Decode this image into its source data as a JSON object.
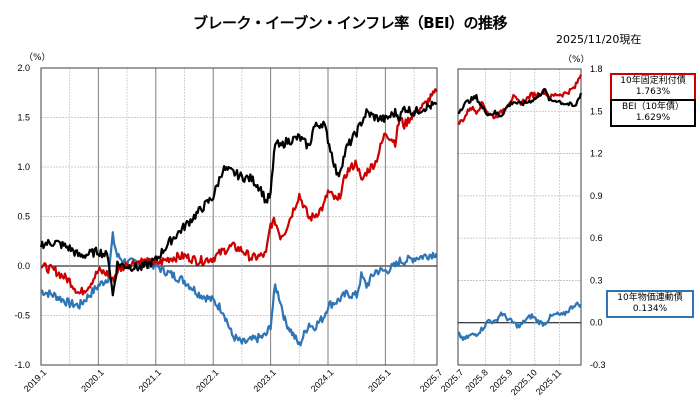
{
  "title": "ブレーク・イーブン・インフレ率（BEI）の推移",
  "as_of": "2025/11/20現在",
  "unit_left": "（%）",
  "unit_right": "（%）",
  "legend": [
    {
      "name": "10年固定利付債",
      "value": "1.763%",
      "color": "#cc0000"
    },
    {
      "name": "BEI（10年債）",
      "value": "1.629%",
      "color": "#000000"
    },
    {
      "name": "10年物価連動債",
      "value": "0.134%",
      "color": "#2e75b6"
    }
  ],
  "chart_data": [
    {
      "type": "line",
      "title": "ブレーク・イーブン・インフレ率（BEI）の推移",
      "xlabel": "",
      "ylabel": "（%）",
      "ylim": [
        -1.0,
        2.0
      ],
      "yticks": [
        "2.0",
        "1.5",
        "1.0",
        "0.5",
        "0.0",
        "-0.5",
        "-1.0"
      ],
      "xticks": [
        "2019.1",
        "2020.1",
        "2021.1",
        "2022.1",
        "2023.1",
        "2024.1",
        "2025.1",
        "2025.7"
      ],
      "grid": true,
      "x": [
        2019.0,
        2019.25,
        2019.5,
        2019.67,
        2019.83,
        2020.0,
        2020.17,
        2020.25,
        2020.33,
        2020.5,
        2020.75,
        2021.0,
        2021.25,
        2021.5,
        2021.75,
        2022.0,
        2022.17,
        2022.33,
        2022.5,
        2022.67,
        2022.83,
        2022.92,
        2023.0,
        2023.08,
        2023.17,
        2023.25,
        2023.5,
        2023.67,
        2023.75,
        2023.92,
        2024.0,
        2024.17,
        2024.33,
        2024.5,
        2024.58,
        2024.67,
        2024.83,
        2025.0,
        2025.17,
        2025.25,
        2025.33,
        2025.5,
        2025.67,
        2025.89
      ],
      "series": [
        {
          "name": "BEI（10年債）",
          "color": "#000000",
          "values": [
            0.22,
            0.24,
            0.18,
            0.1,
            0.12,
            0.15,
            0.1,
            -0.3,
            0.02,
            0.0,
            -0.02,
            0.06,
            0.25,
            0.4,
            0.55,
            0.7,
            0.98,
            0.95,
            0.9,
            0.88,
            0.78,
            0.65,
            0.72,
            1.25,
            1.2,
            1.25,
            1.3,
            1.2,
            1.4,
            1.45,
            1.28,
            0.9,
            1.2,
            1.35,
            1.45,
            1.55,
            1.5,
            1.48,
            1.55,
            1.5,
            1.6,
            1.55,
            1.6,
            1.63
          ]
        },
        {
          "name": "10年固定利付債",
          "color": "#cc0000",
          "values": [
            0.0,
            -0.05,
            -0.15,
            -0.28,
            -0.2,
            -0.05,
            -0.08,
            -0.15,
            -0.05,
            0.02,
            0.05,
            0.02,
            0.08,
            0.1,
            0.05,
            0.08,
            0.15,
            0.2,
            0.16,
            0.08,
            0.1,
            0.12,
            0.42,
            0.45,
            0.3,
            0.35,
            0.72,
            0.48,
            0.5,
            0.6,
            0.75,
            0.65,
            0.95,
            1.05,
            0.85,
            0.95,
            1.05,
            1.35,
            1.25,
            1.5,
            1.42,
            1.55,
            1.62,
            1.76
          ]
        },
        {
          "name": "10年物価連動債",
          "color": "#2e75b6",
          "values": [
            -0.25,
            -0.3,
            -0.38,
            -0.4,
            -0.3,
            -0.2,
            -0.12,
            0.3,
            0.1,
            0.03,
            0.05,
            0.0,
            -0.08,
            -0.15,
            -0.28,
            -0.35,
            -0.45,
            -0.7,
            -0.78,
            -0.75,
            -0.72,
            -0.7,
            -0.6,
            -0.2,
            -0.35,
            -0.55,
            -0.8,
            -0.58,
            -0.62,
            -0.52,
            -0.4,
            -0.35,
            -0.28,
            -0.3,
            -0.1,
            -0.2,
            -0.05,
            -0.05,
            0.0,
            0.05,
            0.05,
            0.08,
            0.1,
            0.13
          ]
        }
      ]
    },
    {
      "type": "line",
      "title": "",
      "ylabel": "（%）",
      "ylim": [
        -0.3,
        1.8
      ],
      "yticks": [
        "1.8",
        "1.5",
        "1.2",
        "0.9",
        "0.6",
        "0.3",
        "0.0",
        "-0.3"
      ],
      "xticks": [
        "2025.7",
        "2025.8",
        "2025.9",
        "2025.10",
        "2025.11"
      ],
      "grid": true,
      "x": [
        0.0,
        0.05,
        0.1,
        0.15,
        0.2,
        0.25,
        0.3,
        0.35,
        0.4,
        0.45,
        0.5,
        0.55,
        0.6,
        0.65,
        0.7,
        0.75,
        0.8,
        0.85,
        0.9,
        0.95,
        1.0
      ],
      "series": [
        {
          "name": "BEI（10年債）",
          "color": "#000000",
          "values": [
            1.49,
            1.55,
            1.58,
            1.6,
            1.52,
            1.48,
            1.49,
            1.47,
            1.53,
            1.57,
            1.55,
            1.56,
            1.58,
            1.6,
            1.66,
            1.57,
            1.58,
            1.56,
            1.55,
            1.53,
            1.63
          ]
        },
        {
          "name": "10年固定利付債",
          "color": "#cc0000",
          "values": [
            1.41,
            1.45,
            1.53,
            1.5,
            1.56,
            1.48,
            1.46,
            1.49,
            1.55,
            1.6,
            1.56,
            1.58,
            1.62,
            1.62,
            1.64,
            1.6,
            1.62,
            1.62,
            1.64,
            1.67,
            1.76
          ]
        },
        {
          "name": "10年物価連動債",
          "color": "#2e75b6",
          "values": [
            -0.08,
            -0.12,
            -0.09,
            -0.08,
            -0.04,
            0.02,
            0.0,
            0.07,
            0.03,
            0.0,
            -0.03,
            0.02,
            0.05,
            0.01,
            -0.01,
            0.04,
            0.06,
            0.05,
            0.09,
            0.13,
            0.13
          ]
        }
      ]
    }
  ]
}
